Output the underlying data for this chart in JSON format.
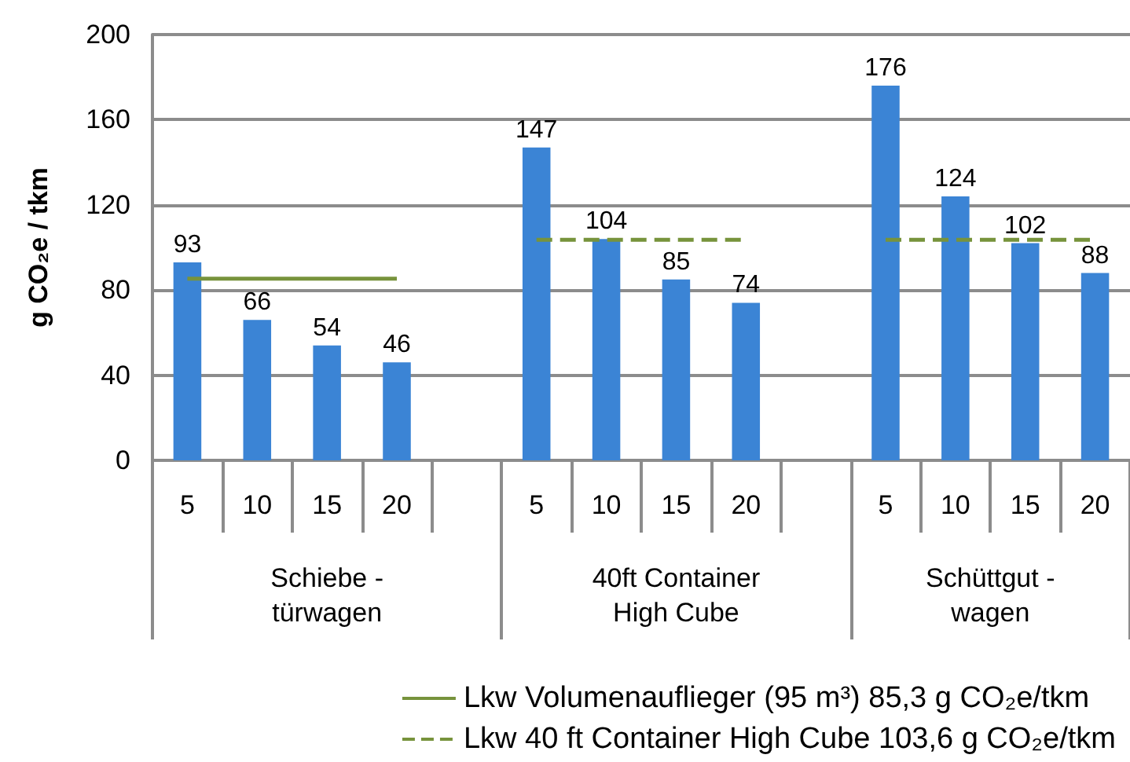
{
  "chart_data": {
    "type": "bar",
    "ylabel": "g CO₂e / tkm",
    "categories": [
      "5",
      "10",
      "15",
      "20",
      null,
      "5",
      "10",
      "15",
      "20",
      null,
      "5",
      "10",
      "15",
      "20"
    ],
    "series": [
      {
        "color": "#3b84d5",
        "values": [
          93,
          66,
          54,
          46,
          null,
          147,
          104,
          85,
          74,
          null,
          176,
          124,
          102,
          88
        ],
        "value_labels": [
          "93",
          "66",
          "54",
          "46",
          null,
          "147",
          "104",
          "85",
          "74",
          null,
          "176",
          "124",
          "102",
          "88"
        ]
      },
      {
        "type": "line",
        "name": "Lkw Volumenauflieger (95 m³) 85,3 g CO₂e/tkm",
        "color": "#77933c",
        "line_style": "solid",
        "values": [
          85.3,
          85.3,
          85.3,
          85.3,
          null,
          null,
          null,
          null,
          null,
          null,
          null,
          null,
          null,
          null
        ]
      },
      {
        "type": "line",
        "name": "Lkw 40 ft Container High Cube 103,6 g CO₂e/tkm",
        "color": "#77933c",
        "line_style": "dashed",
        "values": [
          null,
          null,
          null,
          null,
          null,
          103.6,
          103.6,
          103.6,
          103.6,
          null,
          103.6,
          103.6,
          103.6,
          103.6
        ]
      }
    ],
    "annotations": [
      "Schiebe -\ntürwagen",
      "40ft Container\nHigh Cube",
      "Schüttgut -\nwagen"
    ],
    "ylim": [
      0,
      200
    ],
    "yticks": [
      0,
      40,
      80,
      120,
      160,
      200
    ],
    "grid": "y",
    "legend": "bottom",
    "marker": "none"
  }
}
